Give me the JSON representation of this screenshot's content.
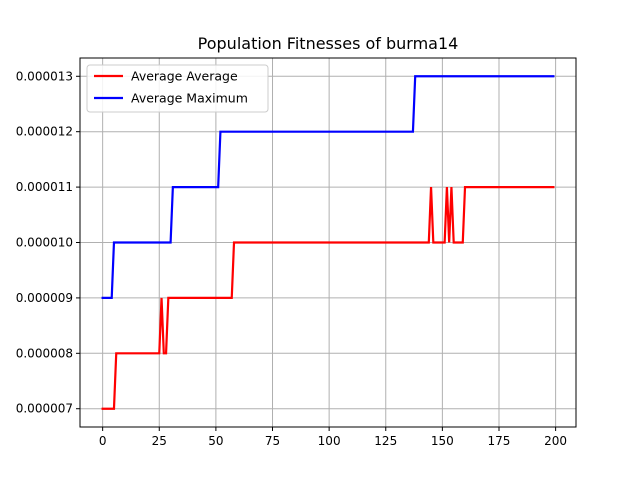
{
  "chart_data": {
    "type": "line",
    "title": "Population Fitnesses of burma14",
    "xlabel": "",
    "ylabel": "",
    "xlim": [
      -10,
      209
    ],
    "ylim": [
      6.67e-06,
      1.333e-05
    ],
    "grid": true,
    "legend_position": "top-left",
    "x_ticks": [
      0,
      25,
      50,
      75,
      100,
      125,
      150,
      175,
      200
    ],
    "x_tick_labels": [
      "0",
      "25",
      "50",
      "75",
      "100",
      "125",
      "150",
      "175",
      "200"
    ],
    "y_ticks": [
      7e-06,
      8e-06,
      9e-06,
      1e-05,
      1.1e-05,
      1.2e-05,
      1.3e-05
    ],
    "y_tick_labels": [
      "0.000007",
      "0.000008",
      "0.000009",
      "0.000010",
      "0.000011",
      "0.000012",
      "0.000013"
    ],
    "series": [
      {
        "name": "Average Average",
        "color": "#ff0000",
        "points": [
          [
            0,
            7e-06
          ],
          [
            5,
            7e-06
          ],
          [
            6,
            8e-06
          ],
          [
            25,
            8e-06
          ],
          [
            26,
            9e-06
          ],
          [
            27,
            8e-06
          ],
          [
            28,
            8e-06
          ],
          [
            29,
            9e-06
          ],
          [
            57,
            9e-06
          ],
          [
            58,
            1e-05
          ],
          [
            144,
            1e-05
          ],
          [
            145,
            1.1e-05
          ],
          [
            146,
            1e-05
          ],
          [
            151,
            1e-05
          ],
          [
            152,
            1.1e-05
          ],
          [
            153,
            1e-05
          ],
          [
            154,
            1.1e-05
          ],
          [
            155,
            1e-05
          ],
          [
            159,
            1e-05
          ],
          [
            160,
            1.1e-05
          ],
          [
            199,
            1.1e-05
          ]
        ]
      },
      {
        "name": "Average Maximum",
        "color": "#0000ff",
        "points": [
          [
            0,
            9e-06
          ],
          [
            4,
            9e-06
          ],
          [
            5,
            1e-05
          ],
          [
            30,
            1e-05
          ],
          [
            31,
            1.1e-05
          ],
          [
            51,
            1.1e-05
          ],
          [
            52,
            1.2e-05
          ],
          [
            137,
            1.2e-05
          ],
          [
            138,
            1.3e-05
          ],
          [
            199,
            1.3e-05
          ]
        ]
      }
    ]
  }
}
